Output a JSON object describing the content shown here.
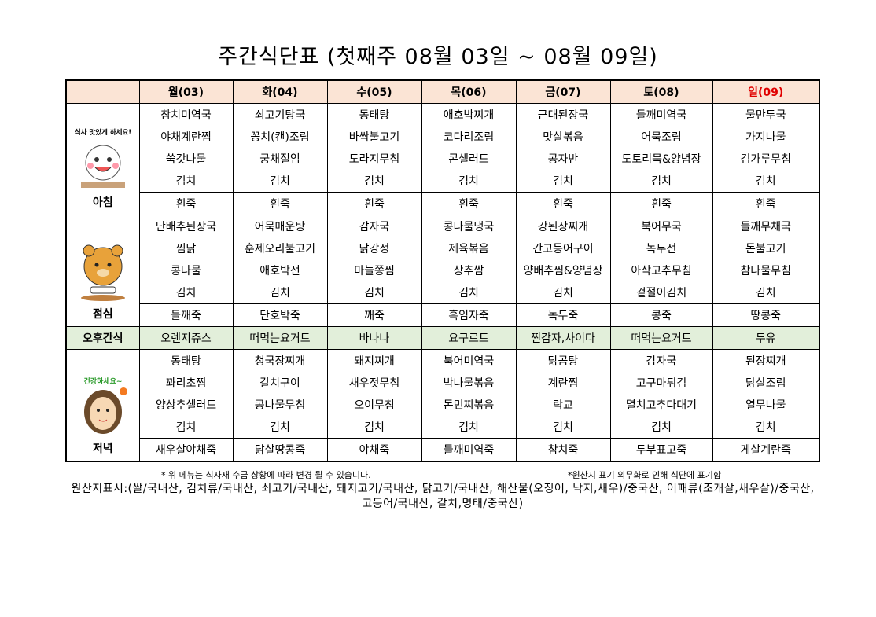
{
  "title": "주간식단표 (첫째주 08월 03일 ~ 08월 09일)",
  "table": {
    "days": [
      "월(03)",
      "화(04)",
      "수(05)",
      "목(06)",
      "금(07)",
      "토(08)",
      "일(09)"
    ],
    "meals": [
      {
        "label": "아침",
        "icon_caption": "식사 맛있게 하세요!",
        "rows": [
          [
            "참치미역국",
            "쇠고기탕국",
            "동태탕",
            "애호박찌개",
            "근대된장국",
            "들깨미역국",
            "물만두국"
          ],
          [
            "야채계란찜",
            "꽁치(캔)조림",
            "바싹불고기",
            "코다리조림",
            "맛살볶음",
            "어묵조림",
            "가지나물"
          ],
          [
            "쑥갓나물",
            "궁채절임",
            "도라지무침",
            "콘샐러드",
            "콩자반",
            "도토리묵&양념장",
            "김가루무침"
          ],
          [
            "김치",
            "김치",
            "김치",
            "김치",
            "김치",
            "김치",
            "김치"
          ],
          [
            "흰죽",
            "흰죽",
            "흰죽",
            "흰죽",
            "흰죽",
            "흰죽",
            "흰죽"
          ]
        ]
      },
      {
        "label": "점심",
        "rows": [
          [
            "단배추된장국",
            "어묵매운탕",
            "감자국",
            "콩나물냉국",
            "강된장찌개",
            "북어무국",
            "들깨무채국"
          ],
          [
            "찜닭",
            "훈제오리불고기",
            "닭강정",
            "제육볶음",
            "간고등어구이",
            "녹두전",
            "돈불고기"
          ],
          [
            "콩나물",
            "애호박전",
            "마늘쫑찜",
            "상추쌈",
            "양배추찜&양념장",
            "아삭고추무침",
            "참나물무침"
          ],
          [
            "김치",
            "김치",
            "김치",
            "김치",
            "김치",
            "겉절이김치",
            "김치"
          ],
          [
            "들깨죽",
            "단호박죽",
            "깨죽",
            "흑임자죽",
            "녹두죽",
            "콩죽",
            "땅콩죽"
          ]
        ]
      },
      {
        "label": "저녁",
        "icon_caption": "건강하세요~",
        "rows": [
          [
            "동태탕",
            "청국장찌개",
            "돼지찌개",
            "북어미역국",
            "닭곰탕",
            "감자국",
            "된장찌개"
          ],
          [
            "꽈리초찜",
            "갈치구이",
            "새우젓무침",
            "박나물볶음",
            "계란찜",
            "고구마튀김",
            "닭살조림"
          ],
          [
            "양상추샐러드",
            "콩나물무침",
            "오이무침",
            "돈민찌볶음",
            "락교",
            "멸치고추다대기",
            "열무나물"
          ],
          [
            "김치",
            "김치",
            "김치",
            "김치",
            "김치",
            "김치",
            "김치"
          ],
          [
            "새우살야채죽",
            "닭살땅콩죽",
            "야채죽",
            "들깨미역죽",
            "참치죽",
            "두부표고죽",
            "게살계란죽"
          ]
        ]
      }
    ],
    "snack": {
      "label": "오후간식",
      "items": [
        "오렌지쥬스",
        "떠먹는요거트",
        "바나나",
        "요구르트",
        "찐감자,사이다",
        "떠먹는요거트",
        "두유"
      ]
    }
  },
  "notes": {
    "change": "* 위 메뉴는 식자재 수급 상황에 따라 변경 될 수 있습니다.",
    "origin_law": "*원산지 표기 의무화로 인해 식단에 표기함",
    "origin": "원산지표시:(쌀/국내산, 김치류/국내산, 쇠고기/국내산, 돼지고기/국내산, 닭고기/국내산, 해산물(오징어, 낙지,새우)/중국산, 어패류(조개살,새우살)/중국산, 고등어/국내산, 갈치,명태/중국산)"
  }
}
